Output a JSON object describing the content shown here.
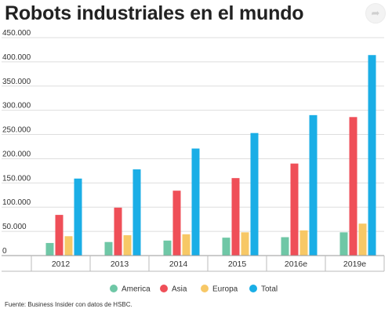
{
  "title": "Robots industriales en el mundo",
  "source": "Fuente: Business Insider con datos de HSBC.",
  "chart_data": {
    "type": "bar",
    "categories": [
      "2012",
      "2013",
      "2014",
      "2015",
      "2016e",
      "2019e"
    ],
    "series": [
      {
        "name": "America",
        "color": "#6fc7a6",
        "values": [
          26000,
          28000,
          31000,
          37000,
          38000,
          48000
        ]
      },
      {
        "name": "Asia",
        "color": "#ef4f58",
        "values": [
          84000,
          99000,
          134000,
          160000,
          190000,
          286000
        ]
      },
      {
        "name": "Europa",
        "color": "#f7c866",
        "values": [
          40000,
          42000,
          44000,
          48000,
          52000,
          66000
        ]
      },
      {
        "name": "Total",
        "color": "#1aaee6",
        "values": [
          159000,
          178000,
          221000,
          253000,
          290000,
          414000
        ]
      }
    ],
    "y_ticks": [
      "0",
      "50.000",
      "100.000",
      "150.000",
      "200.000",
      "250.000",
      "300.000",
      "350.000",
      "400.000",
      "450.000"
    ],
    "ylim": [
      0,
      450000
    ],
    "grid": true,
    "legend": "bottom-center"
  }
}
